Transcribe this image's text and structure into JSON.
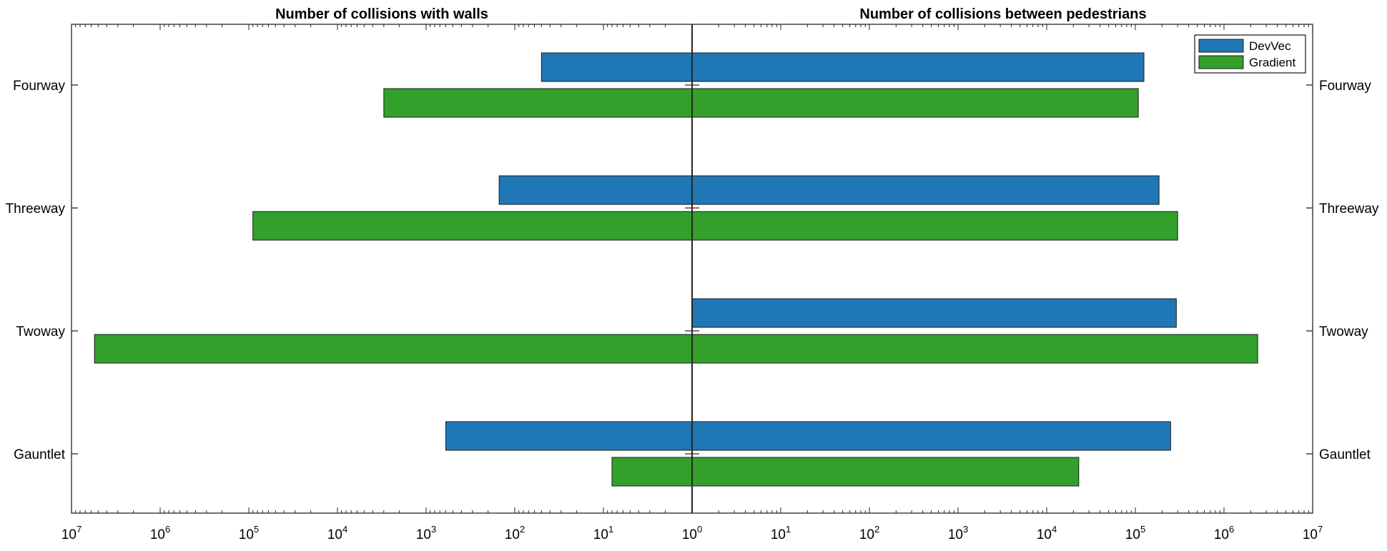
{
  "chart_data": {
    "type": "bar",
    "orientation": "horizontal",
    "layout": "back-to-back",
    "scale": "log",
    "categories": [
      "Fourway",
      "Threeway",
      "Twoway",
      "Gauntlet"
    ],
    "left_panel": {
      "title": "Number of collisions with walls",
      "series": [
        {
          "name": "DevVec",
          "values": [
            50,
            150,
            1,
            600
          ]
        },
        {
          "name": "Gradient",
          "values": [
            3000,
            90000,
            5500000,
            8
          ]
        }
      ]
    },
    "right_panel": {
      "title": "Number of collisions between pedestrians",
      "series": [
        {
          "name": "DevVec",
          "values": [
            125000,
            185000,
            290000,
            250000
          ]
        },
        {
          "name": "Gradient",
          "values": [
            108000,
            300000,
            2400000,
            23000
          ]
        }
      ]
    },
    "xlim": [
      1,
      10000000
    ],
    "tick_labels": [
      {
        "base": "10",
        "exp": "7"
      },
      {
        "base": "10",
        "exp": "6"
      },
      {
        "base": "10",
        "exp": "5"
      },
      {
        "base": "10",
        "exp": "4"
      },
      {
        "base": "10",
        "exp": "3"
      },
      {
        "base": "10",
        "exp": "2"
      },
      {
        "base": "10",
        "exp": "1"
      },
      {
        "base": "10",
        "exp": "0"
      },
      {
        "base": "10",
        "exp": "1"
      },
      {
        "base": "10",
        "exp": "2"
      },
      {
        "base": "10",
        "exp": "3"
      },
      {
        "base": "10",
        "exp": "4"
      },
      {
        "base": "10",
        "exp": "5"
      },
      {
        "base": "10",
        "exp": "6"
      },
      {
        "base": "10",
        "exp": "7"
      }
    ],
    "legend": {
      "position": "top-right",
      "entries": [
        "DevVec",
        "Gradient"
      ]
    },
    "colors": {
      "DevVec": "#2077b5",
      "Gradient": "#33a02c"
    },
    "grid": false
  }
}
